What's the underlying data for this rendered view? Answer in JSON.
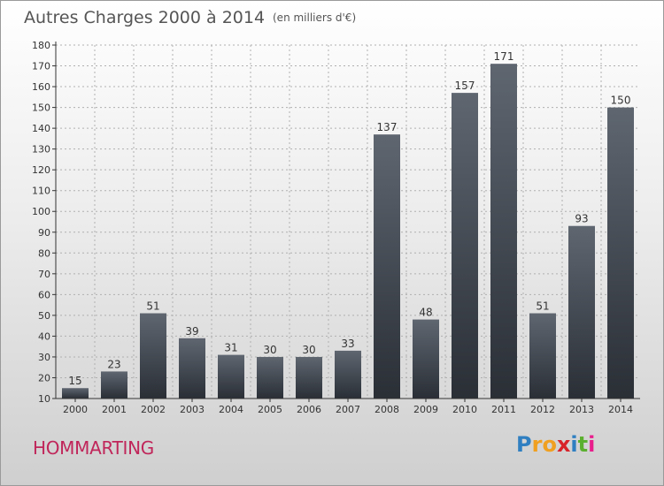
{
  "title": "Autres Charges 2000 à 2014",
  "subtitle": "(en milliers d'€)",
  "commune": "HOMMARTING",
  "logo": {
    "letters": [
      "P",
      "r",
      "o",
      "x",
      "i",
      "t",
      "i"
    ],
    "colors": [
      "#2f7fc1",
      "#f0a020",
      "#f0a020",
      "#d8232a",
      "#2f7fc1",
      "#5bb030",
      "#e91e8c"
    ]
  },
  "colors": {
    "bar_top": "#5f6670",
    "bar_bottom": "#2a2f36",
    "axis": "#333333",
    "grid": "#b0b0b0",
    "title": "#555555",
    "commune": "#c0265a"
  },
  "chart_data": {
    "type": "bar",
    "title": "Autres Charges 2000 à 2014",
    "subtitle": "(en milliers d'€)",
    "xlabel": "",
    "ylabel": "",
    "categories": [
      "2000",
      "2001",
      "2002",
      "2003",
      "2004",
      "2005",
      "2006",
      "2007",
      "2008",
      "2009",
      "2010",
      "2011",
      "2012",
      "2013",
      "2014"
    ],
    "values": [
      15,
      23,
      51,
      39,
      31,
      30,
      30,
      33,
      137,
      48,
      157,
      171,
      51,
      93,
      150
    ],
    "ylim": [
      10,
      180
    ],
    "yticks": [
      10,
      20,
      30,
      40,
      50,
      60,
      70,
      80,
      90,
      100,
      110,
      120,
      130,
      140,
      150,
      160,
      170,
      180
    ],
    "grid": true
  }
}
